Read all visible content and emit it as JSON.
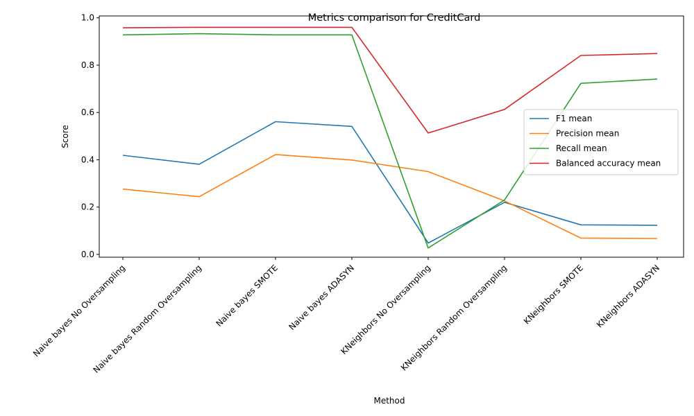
{
  "chart_data": {
    "type": "line",
    "title": "Metrics comparison for CreditCard",
    "xlabel": "Method",
    "ylabel": "Score",
    "categories": [
      "Naive bayes No Oversampling",
      "Naive bayes Random Oversampling",
      "Naive bayes SMOTE",
      "Naive bayes ADASYN",
      "KNeighbors No Oversampling",
      "KNeighbors Random Oversampling",
      "KNeighbors SMOTE",
      "KNeighbors ADASYN"
    ],
    "yticks": [
      "0.0",
      "0.2",
      "0.4",
      "0.6",
      "0.8",
      "1.0"
    ],
    "ylim": [
      -0.012,
      1.008
    ],
    "grid": false,
    "legend_position": "center-right",
    "series": [
      {
        "name": "F1 mean",
        "color": "#1f77b4",
        "values": [
          0.419,
          0.381,
          0.561,
          0.541,
          0.048,
          0.22,
          0.125,
          0.123
        ]
      },
      {
        "name": "Precision mean",
        "color": "#ff7f0e",
        "values": [
          0.276,
          0.244,
          0.422,
          0.399,
          0.35,
          0.226,
          0.069,
          0.067
        ]
      },
      {
        "name": "Recall mean",
        "color": "#2ca02c",
        "values": [
          0.928,
          0.933,
          0.928,
          0.928,
          0.027,
          0.23,
          0.723,
          0.741
        ]
      },
      {
        "name": "Balanced accuracy mean",
        "color": "#d62728",
        "values": [
          0.958,
          0.96,
          0.96,
          0.96,
          0.513,
          0.613,
          0.841,
          0.849
        ]
      }
    ]
  }
}
